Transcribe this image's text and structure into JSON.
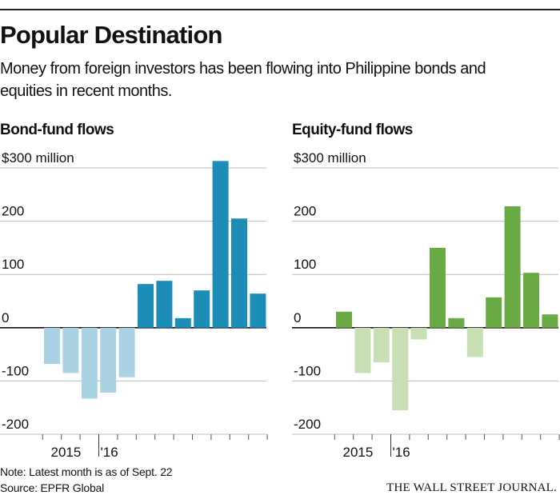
{
  "title": "Popular Destination",
  "subtitle": "Money from foreign investors has been flowing into Philippine bonds and equities in recent months.",
  "note": "Note: Latest month is as of Sept. 22",
  "source": "Source: EPFR Global",
  "credit": "THE WALL STREET JOURNAL.",
  "chart_data": [
    {
      "type": "bar",
      "title": "Bond-fund flows",
      "categories": [
        null,
        "2015",
        null,
        "'16",
        null,
        null,
        null,
        null,
        null,
        null,
        null,
        null
      ],
      "values": [
        -68,
        -85,
        -133,
        -122,
        -93,
        82,
        88,
        18,
        70,
        313,
        205,
        64
      ],
      "positive_color": "#1b8db6",
      "negative_color": "#a9d3e3",
      "ylim": [
        -200,
        300
      ],
      "yticks": [
        -200,
        -100,
        0,
        100,
        200,
        {
          "value": 300,
          "label": "$300 million"
        }
      ],
      "grid": true
    },
    {
      "type": "bar",
      "title": "Equity-fund flows",
      "categories": [
        null,
        "2015",
        null,
        "'16",
        null,
        null,
        null,
        null,
        null,
        null,
        null,
        null
      ],
      "values": [
        30,
        -85,
        -65,
        -155,
        -22,
        150,
        18,
        -55,
        57,
        228,
        103,
        25
      ],
      "positive_color": "#6aaa45",
      "negative_color": "#c7dfb2",
      "ylim": [
        -200,
        300
      ],
      "yticks": [
        -200,
        -100,
        0,
        100,
        200,
        {
          "value": 300,
          "label": "$300 million"
        }
      ],
      "grid": true
    }
  ]
}
